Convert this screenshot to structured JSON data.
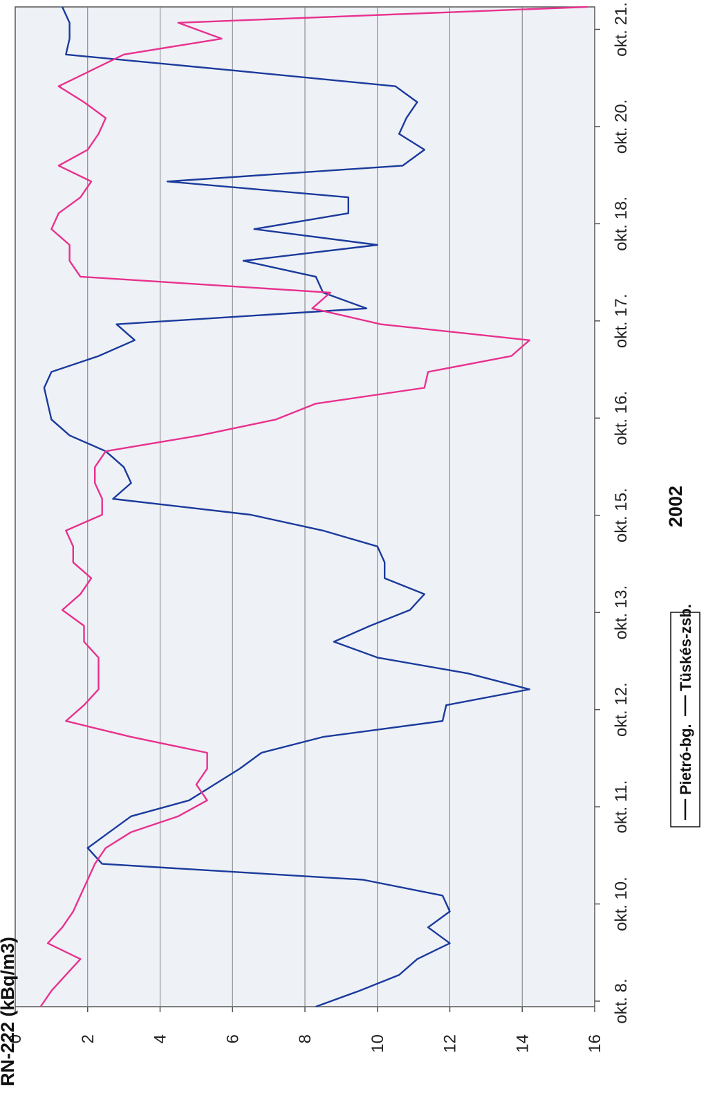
{
  "chart_data": {
    "type": "line",
    "orientation": "rotated-90-ccw",
    "ylabel": "RN-222 (kBq/m3)",
    "xlabel": "2002",
    "ylim": [
      0,
      16
    ],
    "y_ticks": [
      "0",
      "2",
      "4",
      "6",
      "8",
      "10",
      "12",
      "14",
      "16"
    ],
    "x_ticks": [
      "okt. 8.",
      "okt. 10.",
      "okt. 11.",
      "okt. 12.",
      "okt. 13.",
      "okt. 15.",
      "okt. 16.",
      "okt. 17.",
      "okt. 18.",
      "okt. 20.",
      "okt. 21."
    ],
    "grid": true,
    "legend_position": "bottom",
    "series": [
      {
        "name": "Pietró-bg.",
        "color": "#1a3a9c",
        "values": [
          8.3,
          9.5,
          10.6,
          11.1,
          12.0,
          11.4,
          12.0,
          11.8,
          9.6,
          2.4,
          2.0,
          2.6,
          3.2,
          4.8,
          5.5,
          6.2,
          6.8,
          8.5,
          11.8,
          11.9,
          14.2,
          12.5,
          10.0,
          8.8,
          9.8,
          10.9,
          11.3,
          10.2,
          10.2,
          10.0,
          8.5,
          6.5,
          2.7,
          3.2,
          3.0,
          2.5,
          1.5,
          1.0,
          0.9,
          0.8,
          1.0,
          2.3,
          3.3,
          2.8,
          9.7,
          8.5,
          8.3,
          6.3,
          10.0,
          6.6,
          9.2,
          9.2,
          4.2,
          10.7,
          11.3,
          10.6,
          10.8,
          11.1,
          10.5,
          6.0,
          1.4,
          1.5,
          1.5,
          1.3
        ]
      },
      {
        "name": "Tüskés-zsb.",
        "color": "#e8318e",
        "values": [
          0.7,
          1.0,
          1.4,
          1.8,
          0.9,
          1.3,
          1.6,
          1.8,
          2.0,
          2.2,
          2.5,
          3.2,
          4.5,
          5.3,
          5.0,
          5.3,
          5.3,
          3.2,
          1.4,
          1.9,
          2.3,
          2.3,
          2.3,
          1.9,
          1.9,
          1.3,
          1.8,
          2.1,
          1.6,
          1.6,
          1.4,
          2.4,
          2.4,
          2.2,
          2.2,
          2.5,
          5.1,
          7.2,
          8.3,
          11.3,
          11.4,
          13.7,
          14.2,
          10.1,
          8.2,
          8.7,
          1.8,
          1.5,
          1.5,
          1.0,
          1.2,
          1.8,
          2.1,
          1.2,
          2.0,
          2.3,
          2.5,
          1.9,
          1.2,
          2.1,
          3.0,
          5.7,
          4.5,
          15.8
        ]
      }
    ]
  }
}
